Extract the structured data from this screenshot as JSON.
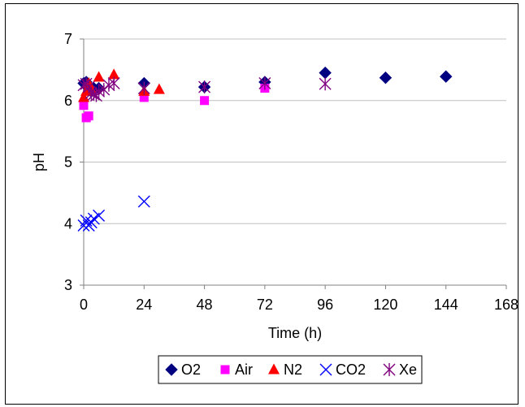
{
  "chart_data": {
    "type": "scatter",
    "title": "",
    "xlabel": "Time (h)",
    "ylabel": "pH",
    "xlim": [
      0,
      168
    ],
    "ylim": [
      3,
      7
    ],
    "x_ticks": [
      "0",
      "24",
      "48",
      "72",
      "96",
      "120",
      "144",
      "168"
    ],
    "y_ticks": [
      "3",
      "4",
      "5",
      "6",
      "7"
    ],
    "grid": "horizontal",
    "legend_position": "bottom",
    "series": [
      {
        "name": "O2",
        "marker": "diamond",
        "color": "#000080",
        "points": [
          [
            0,
            6.28
          ],
          [
            1,
            6.3
          ],
          [
            2,
            6.22
          ],
          [
            3,
            6.15
          ],
          [
            4,
            6.2
          ],
          [
            6,
            6.2
          ],
          [
            24,
            6.28
          ],
          [
            48,
            6.22
          ],
          [
            72,
            6.3
          ],
          [
            96,
            6.45
          ],
          [
            120,
            6.37
          ],
          [
            144,
            6.39
          ]
        ]
      },
      {
        "name": "Air",
        "marker": "square",
        "color": "#FF00FF",
        "points": [
          [
            0,
            5.92
          ],
          [
            1,
            5.72
          ],
          [
            2,
            5.75
          ],
          [
            24,
            6.05
          ],
          [
            48,
            6.0
          ],
          [
            72,
            6.2
          ]
        ]
      },
      {
        "name": "N2",
        "marker": "triangle",
        "color": "#FF0000",
        "points": [
          [
            0,
            6.05
          ],
          [
            1,
            6.15
          ],
          [
            2,
            6.28
          ],
          [
            3,
            6.18
          ],
          [
            6,
            6.38
          ],
          [
            12,
            6.42
          ],
          [
            24,
            6.15
          ],
          [
            30,
            6.18
          ]
        ]
      },
      {
        "name": "CO2",
        "marker": "x",
        "color": "#0000FF",
        "points": [
          [
            0,
            3.97
          ],
          [
            1,
            4.05
          ],
          [
            2,
            3.97
          ],
          [
            3,
            4.02
          ],
          [
            4,
            4.08
          ],
          [
            6,
            4.13
          ],
          [
            24,
            4.36
          ]
        ]
      },
      {
        "name": "Xe",
        "marker": "star",
        "color": "#800080",
        "points": [
          [
            0,
            6.25
          ],
          [
            1,
            6.27
          ],
          [
            2,
            6.22
          ],
          [
            3,
            6.12
          ],
          [
            4,
            6.1
          ],
          [
            5,
            6.08
          ],
          [
            6,
            6.15
          ],
          [
            8,
            6.18
          ],
          [
            10,
            6.25
          ],
          [
            12,
            6.28
          ],
          [
            24,
            6.2
          ],
          [
            48,
            6.22
          ],
          [
            72,
            6.28
          ],
          [
            96,
            6.27
          ]
        ]
      }
    ]
  }
}
